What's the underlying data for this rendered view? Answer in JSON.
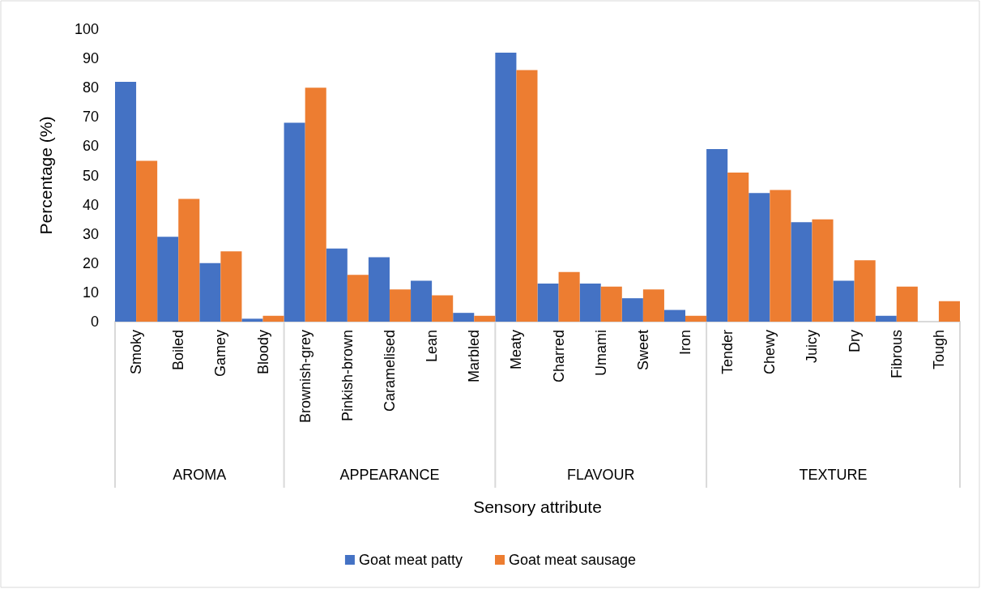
{
  "chart_data": {
    "type": "bar",
    "xlabel": "Sensory attribute",
    "ylabel": "Percentage (%)",
    "categories": [
      "Smoky",
      "Boiled",
      "Gamey",
      "Bloody",
      "Brownish-grey",
      "Pinkish-brown",
      "Caramelised",
      "Lean",
      "Marbled",
      "Meaty",
      "Charred",
      "Umami",
      "Sweet",
      "Iron",
      "Tender",
      "Chewy",
      "Juicy",
      "Dry",
      "Fibrous",
      "Tough"
    ],
    "series": [
      {
        "name": "Goat meat patty",
        "color": "#4472c4",
        "values": [
          82,
          29,
          20,
          1,
          68,
          25,
          22,
          14,
          3,
          92,
          13,
          13,
          8,
          4,
          59,
          44,
          34,
          14,
          2,
          0
        ]
      },
      {
        "name": "Goat meat sausage",
        "color": "#ed7d31",
        "values": [
          55,
          42,
          24,
          2,
          80,
          16,
          11,
          9,
          2,
          86,
          17,
          12,
          11,
          2,
          51,
          45,
          35,
          21,
          12,
          7
        ]
      }
    ],
    "annotations": [
      "AROMA",
      "APPEARANCE",
      "FLAVOUR",
      "TEXTURE"
    ],
    "ylim": [
      0,
      100
    ],
    "yticks": [
      0,
      10,
      20,
      30,
      40,
      50,
      60,
      70,
      80,
      90,
      100
    ],
    "grid": false,
    "legend": "bottom"
  }
}
